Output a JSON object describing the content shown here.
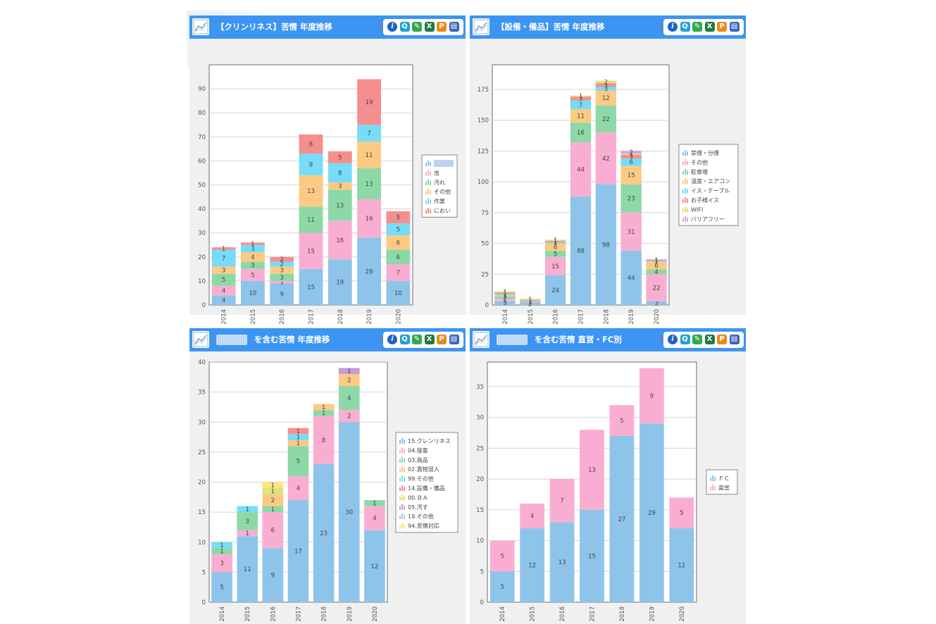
{
  "widgets": [
    {
      "title": "【クリンリネス】苦情 年度推移",
      "title_pre": "",
      "chart_data": {
        "type": "bar",
        "stacked": true,
        "categories": [
          "2014",
          "2015",
          "2016",
          "2017",
          "2018",
          "2019",
          "2020"
        ],
        "ylim": [
          0,
          100
        ],
        "yticks": [
          0,
          10,
          20,
          30,
          40,
          50,
          60,
          70,
          80,
          90
        ],
        "series": [
          {
            "name": "",
            "color": "#8ec4ea",
            "values": [
              4,
              10,
              9,
              15,
              19,
              28,
              10
            ]
          },
          {
            "name": "虫",
            "color": "#f9aed1",
            "values": [
              4,
              5,
              1,
              15,
              16,
              16,
              7
            ]
          },
          {
            "name": "汚れ",
            "color": "#8cd9a7",
            "values": [
              5,
              3,
              3,
              11,
              13,
              13,
              6
            ]
          },
          {
            "name": "その他",
            "color": "#fdca84",
            "values": [
              3,
              4,
              3,
              13,
              3,
              11,
              6
            ]
          },
          {
            "name": "作業",
            "color": "#76dcf7",
            "values": [
              7,
              3,
              2,
              9,
              8,
              7,
              5
            ]
          },
          {
            "name": "におい",
            "color": "#f58f8f",
            "values": [
              1,
              1,
              2,
              8,
              5,
              19,
              5
            ]
          }
        ],
        "grid": true,
        "legend": "right"
      }
    },
    {
      "title": "【設備・備品】苦情 年度推移",
      "title_pre": "",
      "chart_data": {
        "type": "bar",
        "stacked": true,
        "categories": [
          "2014",
          "2015",
          "2016",
          "2017",
          "2018",
          "2019",
          "2020"
        ],
        "ylim": [
          0,
          195
        ],
        "yticks": [
          0,
          25,
          50,
          75,
          100,
          125,
          150,
          175
        ],
        "series": [
          {
            "name": "禁煙・分煙",
            "color": "#8ec4ea",
            "values": [
              3,
              2,
              24,
              88,
              98,
              44,
              3
            ]
          },
          {
            "name": "その他",
            "color": "#f9aed1",
            "values": [
              2,
              1,
              15,
              44,
              42,
              31,
              22
            ]
          },
          {
            "name": "駐車場",
            "color": "#8cd9a7",
            "values": [
              2,
              1,
              5,
              16,
              22,
              23,
              4
            ]
          },
          {
            "name": "温度・エアコン",
            "color": "#fdca84",
            "values": [
              1,
              1,
              6,
              11,
              12,
              15,
              6
            ]
          },
          {
            "name": "イス・テーブル",
            "color": "#76dcf7",
            "values": [
              1,
              0,
              1,
              7,
              3,
              6,
              1
            ]
          },
          {
            "name": "お子様イス",
            "color": "#f58f8f",
            "values": [
              1,
              0,
              1,
              3,
              3,
              3,
              1
            ]
          },
          {
            "name": "WIFI",
            "color": "#dde47a",
            "values": [
              1,
              0,
              1,
              1,
              2,
              1,
              0
            ]
          },
          {
            "name": "バリアフリー",
            "color": "#d7a0dd",
            "values": [
              0,
              0,
              0,
              0,
              0,
              2,
              0
            ]
          }
        ],
        "grid": true,
        "legend": "right"
      }
    },
    {
      "title": "を含む苦情 年度推移",
      "title_pre": "masked",
      "chart_data": {
        "type": "bar",
        "stacked": true,
        "categories": [
          "2014",
          "2015",
          "2016",
          "2017",
          "2018",
          "2019",
          "2020"
        ],
        "ylim": [
          0,
          40
        ],
        "yticks": [
          0,
          5,
          10,
          15,
          20,
          25,
          30,
          35,
          40
        ],
        "series": [
          {
            "name": "15.クレンリネス",
            "color": "#8ec4ea",
            "values": [
              5,
              11,
              9,
              17,
              23,
              30,
              12
            ]
          },
          {
            "name": "04.接客",
            "color": "#f9aed1",
            "values": [
              3,
              1,
              6,
              4,
              8,
              2,
              4
            ]
          },
          {
            "name": "03.商品",
            "color": "#8cd9a7",
            "values": [
              1,
              3,
              1,
              5,
              1,
              4,
              1
            ]
          },
          {
            "name": "02.異物混入",
            "color": "#fdca84",
            "values": [
              0,
              0,
              2,
              1,
              1,
              2,
              0
            ]
          },
          {
            "name": "99.その他",
            "color": "#76dcf7",
            "values": [
              1,
              1,
              0,
              1,
              0,
              0,
              0
            ]
          },
          {
            "name": "14.設備・備品",
            "color": "#f58f8f",
            "values": [
              0,
              0,
              0,
              1,
              0,
              0,
              0
            ]
          },
          {
            "name": "00.ＢＡ",
            "color": "#dde47a",
            "values": [
              0,
              0,
              1,
              0,
              0,
              0,
              0
            ]
          },
          {
            "name": "05.汚す",
            "color": "#c89ad8",
            "values": [
              0,
              0,
              0,
              0,
              0,
              1,
              0
            ]
          },
          {
            "name": "19.その他",
            "color": "#9bd7cc",
            "values": [
              0,
              0,
              0,
              0,
              0,
              0,
              0
            ]
          },
          {
            "name": "94.苦情対応",
            "color": "#fbe67a",
            "values": [
              0,
              0,
              1,
              0,
              0,
              0,
              0
            ]
          }
        ],
        "grid": true,
        "legend": "right"
      }
    },
    {
      "title": "を含む苦情 直営・FC別",
      "title_pre": "masked",
      "chart_data": {
        "type": "bar",
        "stacked": true,
        "categories": [
          "2014",
          "2015",
          "2016",
          "2017",
          "2018",
          "2019",
          "2020"
        ],
        "ylim": [
          0,
          39
        ],
        "yticks": [
          0,
          5,
          10,
          15,
          20,
          25,
          30,
          35
        ],
        "series": [
          {
            "name": "ＦＣ",
            "color": "#8ec4ea",
            "values": [
              5,
              12,
              13,
              15,
              27,
              29,
              12
            ]
          },
          {
            "name": "直営",
            "color": "#f9aed1",
            "values": [
              5,
              4,
              7,
              13,
              5,
              9,
              5
            ]
          }
        ],
        "grid": true,
        "legend": "right"
      }
    }
  ],
  "toolbar": {
    "icons": [
      "info-icon",
      "search-icon",
      "edit-icon",
      "excel-icon",
      "powerpoint-icon",
      "copy-icon"
    ],
    "labels": [
      "i",
      "Q",
      "✎",
      "X",
      "P",
      "▤"
    ]
  }
}
